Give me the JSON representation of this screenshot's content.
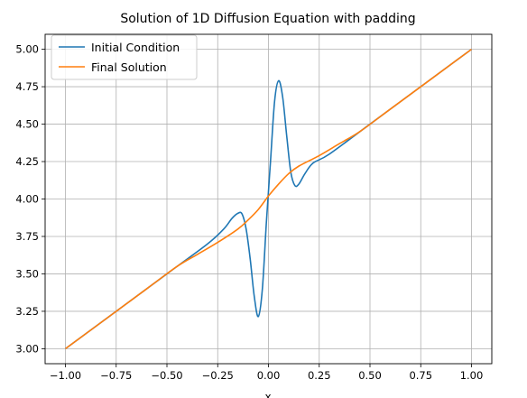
{
  "chart_data": {
    "type": "line",
    "title": "Solution of 1D Diffusion Equation with padding",
    "xlabel": "x",
    "ylabel": "",
    "xlim": [
      -1.1,
      1.1
    ],
    "ylim": [
      2.9,
      5.1
    ],
    "xticks": [
      -1.0,
      -0.75,
      -0.5,
      -0.25,
      0.0,
      0.25,
      0.5,
      0.75,
      1.0
    ],
    "xtick_labels": [
      "−1.00",
      "−0.75",
      "−0.50",
      "−0.25",
      "0.00",
      "0.25",
      "0.50",
      "0.75",
      "1.00"
    ],
    "yticks": [
      3.0,
      3.25,
      3.5,
      3.75,
      4.0,
      4.25,
      4.5,
      4.75,
      5.0
    ],
    "ytick_labels": [
      "3.00",
      "3.25",
      "3.50",
      "3.75",
      "4.00",
      "4.25",
      "4.50",
      "4.75",
      "5.00"
    ],
    "grid": true,
    "legend_position": "top-left",
    "series": [
      {
        "name": "Initial Condition",
        "color": "#1f77b4",
        "x": [
          -1.0,
          -0.5,
          -0.3,
          -0.22,
          -0.18,
          -0.15,
          -0.13,
          -0.11,
          -0.09,
          -0.07,
          -0.05,
          -0.03,
          -0.01,
          0.01,
          0.03,
          0.05,
          0.07,
          0.09,
          0.11,
          0.13,
          0.15,
          0.18,
          0.22,
          0.3,
          0.5,
          1.0
        ],
        "y": [
          3.0,
          3.5,
          3.7,
          3.8,
          3.87,
          3.905,
          3.9,
          3.8,
          3.6,
          3.35,
          3.215,
          3.4,
          3.85,
          4.25,
          4.65,
          4.79,
          4.68,
          4.42,
          4.18,
          4.09,
          4.1,
          4.17,
          4.24,
          4.3,
          4.5,
          5.0
        ]
      },
      {
        "name": "Final Solution",
        "color": "#ff7f0e",
        "x": [
          -1.0,
          -0.6,
          -0.45,
          -0.35,
          -0.25,
          -0.15,
          -0.1,
          -0.05,
          0.0,
          0.05,
          0.1,
          0.15,
          0.25,
          0.35,
          0.45,
          0.6,
          1.0
        ],
        "y": [
          3.0,
          3.4,
          3.55,
          3.63,
          3.71,
          3.8,
          3.86,
          3.93,
          4.02,
          4.1,
          4.17,
          4.22,
          4.29,
          4.37,
          4.45,
          4.6,
          5.0
        ]
      }
    ]
  }
}
